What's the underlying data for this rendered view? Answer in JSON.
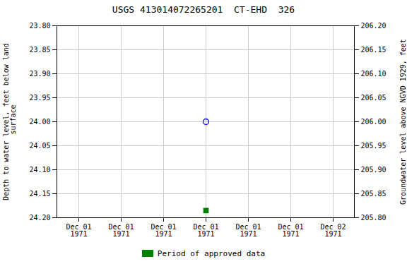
{
  "chart_data": {
    "type": "scatter",
    "title": "USGS 413014072265201  CT-EHD  326",
    "ylabel": "Depth to water level, feet below land\n surface",
    "y2label": "Groundwater level above NGVD 1929, feet",
    "categories": [
      "Dec 01\n1971",
      "Dec 01\n1971",
      "Dec 01\n1971",
      "Dec 01\n1971",
      "Dec 01\n1971",
      "Dec 01\n1971",
      "Dec 02\n1971"
    ],
    "series": [
      {
        "color": "blue",
        "marker": "open_circle",
        "values": [
          null,
          null,
          null,
          24.0,
          null,
          null,
          null
        ]
      },
      {
        "name": "Period of approved data",
        "color": "green",
        "marker": "square",
        "values": [
          null,
          null,
          null,
          24.185,
          null,
          null,
          null
        ]
      }
    ],
    "ylim": [
      24.2,
      23.8
    ],
    "yticks": [
      {
        "value": 23.8,
        "label": "23.80"
      },
      {
        "value": 23.85,
        "label": "23.85"
      },
      {
        "value": 23.9,
        "label": "23.90"
      },
      {
        "value": 23.95,
        "label": "23.95"
      },
      {
        "value": 24.0,
        "label": "24.00"
      },
      {
        "value": 24.05,
        "label": "24.05"
      },
      {
        "value": 24.1,
        "label": "24.10"
      },
      {
        "value": 24.15,
        "label": "24.15"
      },
      {
        "value": 24.2,
        "label": "24.20"
      }
    ],
    "y2lim": [
      205.8,
      206.2
    ],
    "y2ticks": [
      {
        "value": 206.2,
        "label": "206.20"
      },
      {
        "value": 206.15,
        "label": "206.15"
      },
      {
        "value": 206.1,
        "label": "206.10"
      },
      {
        "value": 206.05,
        "label": "206.05"
      },
      {
        "value": 206.0,
        "label": "206.00"
      },
      {
        "value": 205.95,
        "label": "205.95"
      },
      {
        "value": 205.9,
        "label": "205.90"
      },
      {
        "value": 205.85,
        "label": "205.85"
      },
      {
        "value": 205.8,
        "label": "205.80"
      }
    ],
    "grid": true,
    "legend": "bottom"
  }
}
